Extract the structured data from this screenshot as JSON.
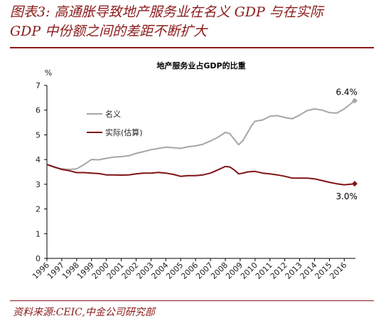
{
  "figure": {
    "title_line1": "图表3:  高通胀导致地产服务业在名义 GDP 与在实际",
    "title_line2": "GDP 中份额之间的差距不断扩大",
    "source": "资料来源:CEIC,中金公司研究部"
  },
  "chart_data": {
    "type": "line",
    "title": "地产服务业占GDP的比重",
    "ylabel": "%",
    "xlabel": "",
    "ylim": [
      0,
      7
    ],
    "yticks": [
      "0",
      "1",
      "2",
      "3",
      "4",
      "5",
      "6",
      "7"
    ],
    "xlim": [
      1996,
      2016.75
    ],
    "xticks": [
      "1996",
      "1997",
      "1998",
      "1999",
      "2000",
      "2001",
      "2002",
      "2003",
      "2004",
      "2005",
      "2006",
      "2007",
      "2008",
      "2009",
      "2010",
      "2011",
      "2012",
      "2013",
      "2014",
      "2015",
      "2016"
    ],
    "legend": "upper-left",
    "grid": false,
    "series": [
      {
        "name": "名义",
        "color": "#a6a6a6",
        "end_label": "6.4%",
        "points": [
          [
            1996.0,
            3.8
          ],
          [
            1996.5,
            3.68
          ],
          [
            1997.0,
            3.62
          ],
          [
            1997.5,
            3.6
          ],
          [
            1998.0,
            3.62
          ],
          [
            1998.5,
            3.8
          ],
          [
            1999.0,
            4.0
          ],
          [
            1999.5,
            3.99
          ],
          [
            2000.0,
            4.05
          ],
          [
            2000.5,
            4.1
          ],
          [
            2001.0,
            4.12
          ],
          [
            2001.5,
            4.15
          ],
          [
            2002.0,
            4.25
          ],
          [
            2002.5,
            4.32
          ],
          [
            2003.0,
            4.4
          ],
          [
            2003.5,
            4.45
          ],
          [
            2004.0,
            4.5
          ],
          [
            2004.5,
            4.48
          ],
          [
            2005.0,
            4.45
          ],
          [
            2005.5,
            4.52
          ],
          [
            2006.0,
            4.55
          ],
          [
            2006.5,
            4.62
          ],
          [
            2007.0,
            4.75
          ],
          [
            2007.5,
            4.9
          ],
          [
            2008.0,
            5.1
          ],
          [
            2008.3,
            5.05
          ],
          [
            2008.6,
            4.82
          ],
          [
            2008.9,
            4.6
          ],
          [
            2009.2,
            4.78
          ],
          [
            2009.5,
            5.1
          ],
          [
            2009.8,
            5.4
          ],
          [
            2010.0,
            5.55
          ],
          [
            2010.5,
            5.6
          ],
          [
            2011.0,
            5.75
          ],
          [
            2011.5,
            5.78
          ],
          [
            2012.0,
            5.7
          ],
          [
            2012.5,
            5.65
          ],
          [
            2013.0,
            5.8
          ],
          [
            2013.5,
            5.98
          ],
          [
            2014.0,
            6.05
          ],
          [
            2014.5,
            6.0
          ],
          [
            2015.0,
            5.9
          ],
          [
            2015.5,
            5.88
          ],
          [
            2016.0,
            6.05
          ],
          [
            2016.7,
            6.38
          ]
        ]
      },
      {
        "name": "实际(估算)",
        "color": "#7f1416",
        "end_label": "3.0%",
        "points": [
          [
            1996.0,
            3.8
          ],
          [
            1996.5,
            3.7
          ],
          [
            1997.0,
            3.6
          ],
          [
            1997.5,
            3.55
          ],
          [
            1998.0,
            3.47
          ],
          [
            1998.5,
            3.47
          ],
          [
            1999.0,
            3.45
          ],
          [
            1999.5,
            3.43
          ],
          [
            2000.0,
            3.38
          ],
          [
            2000.5,
            3.38
          ],
          [
            2001.0,
            3.37
          ],
          [
            2001.5,
            3.38
          ],
          [
            2002.0,
            3.42
          ],
          [
            2002.5,
            3.45
          ],
          [
            2003.0,
            3.45
          ],
          [
            2003.5,
            3.48
          ],
          [
            2004.0,
            3.45
          ],
          [
            2004.5,
            3.4
          ],
          [
            2005.0,
            3.32
          ],
          [
            2005.5,
            3.35
          ],
          [
            2006.0,
            3.35
          ],
          [
            2006.5,
            3.38
          ],
          [
            2007.0,
            3.45
          ],
          [
            2007.5,
            3.58
          ],
          [
            2008.0,
            3.72
          ],
          [
            2008.3,
            3.7
          ],
          [
            2008.6,
            3.58
          ],
          [
            2008.9,
            3.42
          ],
          [
            2009.2,
            3.45
          ],
          [
            2009.5,
            3.5
          ],
          [
            2010.0,
            3.52
          ],
          [
            2010.5,
            3.45
          ],
          [
            2011.0,
            3.42
          ],
          [
            2011.5,
            3.38
          ],
          [
            2012.0,
            3.32
          ],
          [
            2012.5,
            3.25
          ],
          [
            2013.0,
            3.25
          ],
          [
            2013.5,
            3.25
          ],
          [
            2014.0,
            3.22
          ],
          [
            2014.5,
            3.15
          ],
          [
            2015.0,
            3.08
          ],
          [
            2015.5,
            3.02
          ],
          [
            2016.0,
            2.98
          ],
          [
            2016.7,
            3.02
          ]
        ]
      }
    ]
  }
}
